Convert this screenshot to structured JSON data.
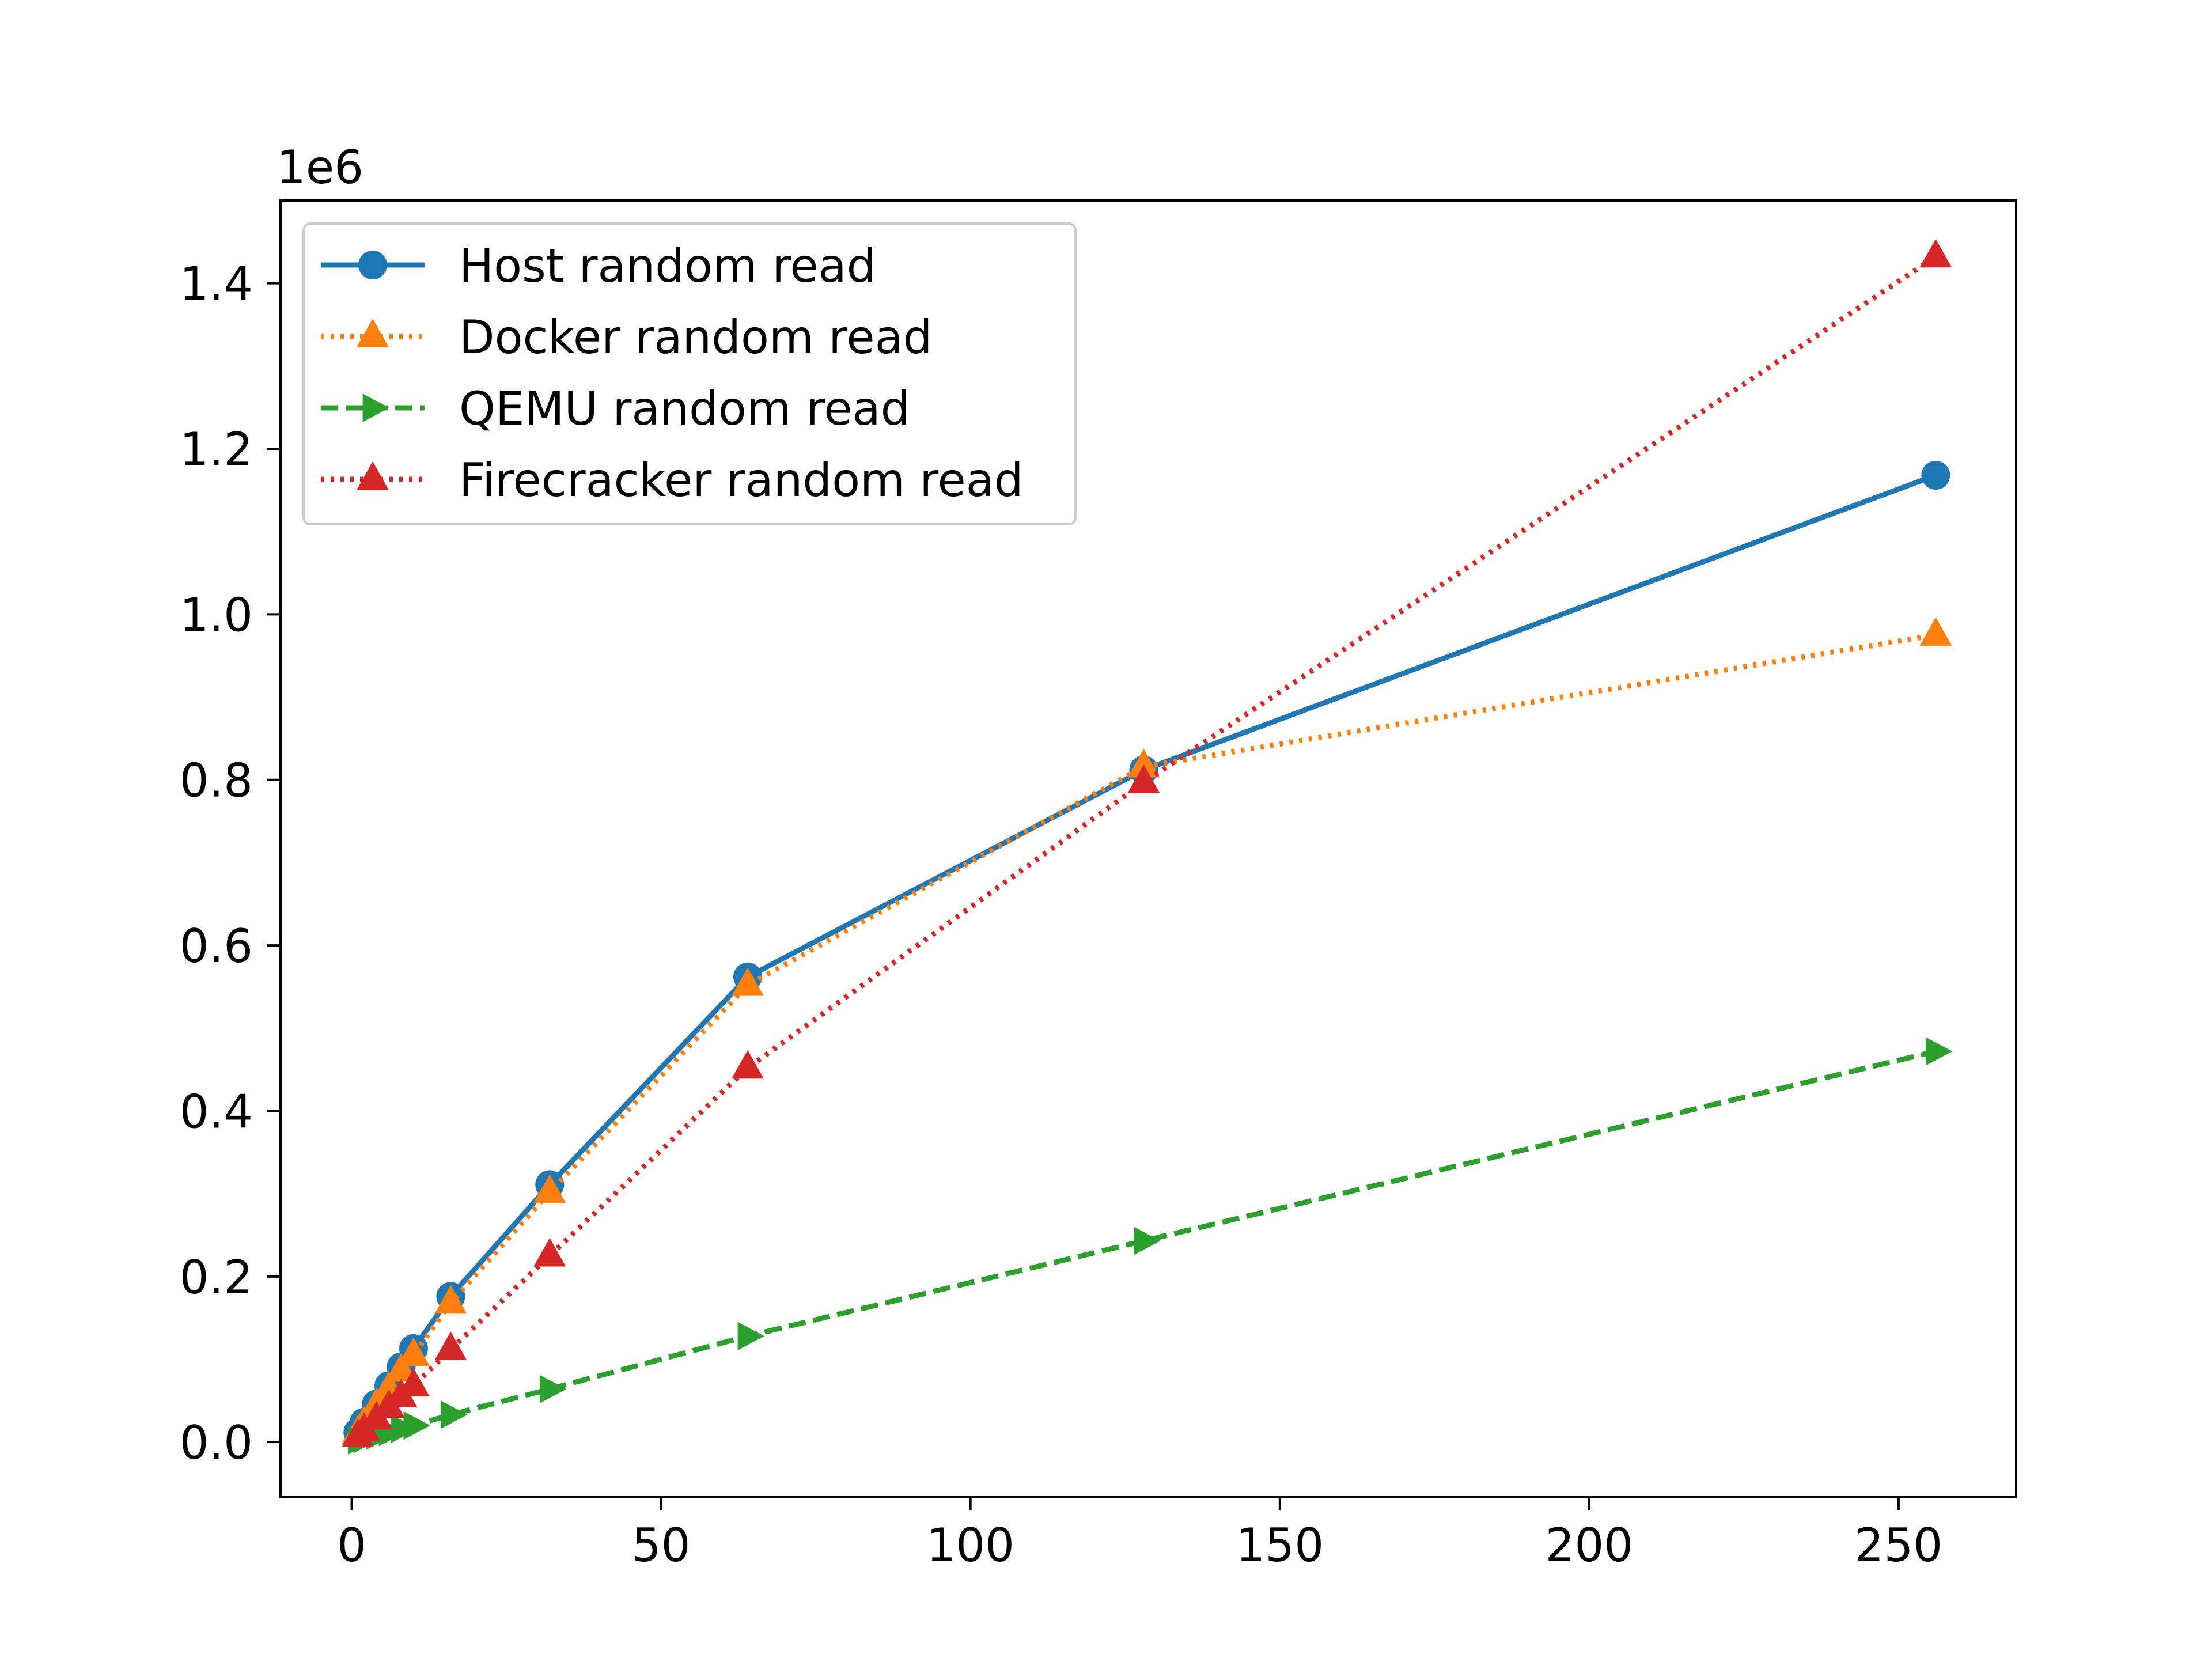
{
  "chart_data": {
    "type": "line",
    "title": "",
    "xlabel": "",
    "ylabel": "",
    "y_offset_label": "1e6",
    "y_scale": 1000000,
    "xlim": [
      -11.5,
      269
    ],
    "ylim": [
      -66000,
      1500000
    ],
    "x_ticks": [
      0,
      50,
      100,
      150,
      200,
      250
    ],
    "x_tick_labels": [
      "0",
      "50",
      "100",
      "150",
      "200",
      "250"
    ],
    "y_ticks": [
      0,
      200000,
      400000,
      600000,
      800000,
      1000000,
      1200000,
      1400000
    ],
    "y_tick_labels": [
      "0.0",
      "0.2",
      "0.4",
      "0.6",
      "0.8",
      "1.0",
      "1.2",
      "1.4"
    ],
    "grid": false,
    "legend_position": "top-left",
    "x": [
      1,
      2,
      4,
      6,
      8,
      10,
      16,
      32,
      64,
      128,
      256
    ],
    "series": [
      {
        "name": "Host random read",
        "color": "#1f77b4",
        "line_style": "solid",
        "marker": "circle",
        "values": [
          12000,
          24000,
          46000,
          68000,
          91000,
          113000,
          176000,
          311000,
          562000,
          812000,
          1168000
        ]
      },
      {
        "name": "Docker random read",
        "color": "#ff7f0e",
        "line_style": "dotted",
        "marker": "triangle-up",
        "values": [
          11000,
          22000,
          44000,
          64000,
          86000,
          105000,
          168000,
          302000,
          552000,
          816000,
          975000
        ]
      },
      {
        "name": "QEMU random read",
        "color": "#2ca02c",
        "line_style": "dashed",
        "marker": "triangle-right",
        "values": [
          2000,
          4000,
          8000,
          12000,
          16000,
          20000,
          33000,
          64000,
          128000,
          243000,
          472000
        ]
      },
      {
        "name": "Firecracker random read",
        "color": "#d62728",
        "line_style": "dotted",
        "marker": "triangle-up",
        "values": [
          7000,
          14000,
          28000,
          42000,
          55000,
          68000,
          112000,
          225000,
          452000,
          797000,
          1432000
        ]
      }
    ]
  }
}
